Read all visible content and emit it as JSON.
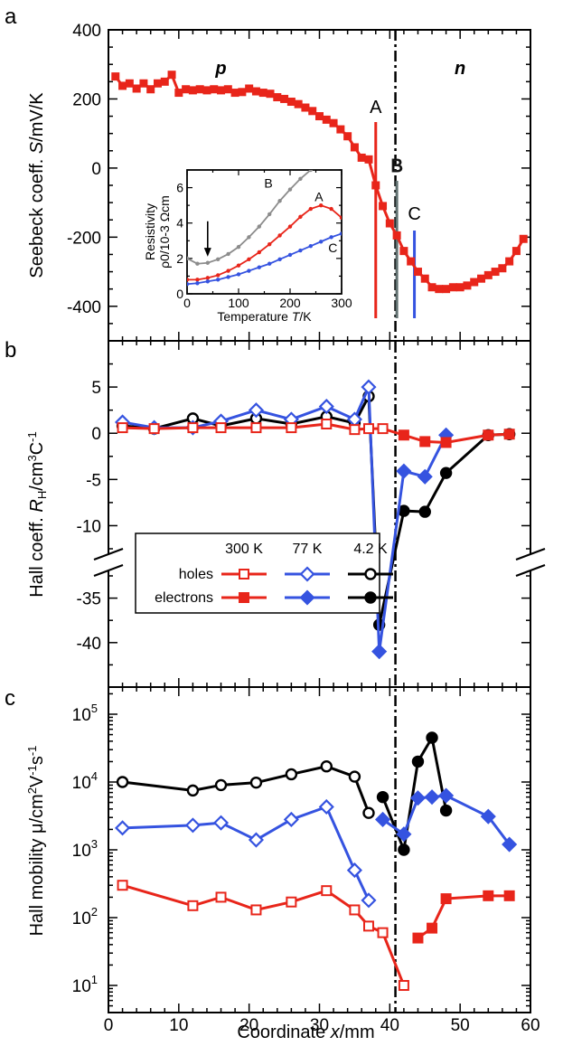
{
  "chart_data": [
    {
      "panel": "a",
      "type": "line",
      "xlabel": "Coordinate x/mm",
      "ylabel_prefix": "Seebeck coeff. ",
      "ylabel_var": "S",
      "ylabel_unit": "/mV/K",
      "xlim": [
        0,
        60
      ],
      "ylim": [
        -500,
        400
      ],
      "yticks": [
        "400",
        "200",
        "0",
        "-200",
        "-400"
      ],
      "color": "#e8251a",
      "x": [
        1,
        2,
        3,
        4,
        5,
        6,
        7,
        8,
        9,
        10,
        11,
        12,
        13,
        14,
        15,
        16,
        17,
        18,
        19,
        20,
        21,
        22,
        23,
        24,
        25,
        26,
        27,
        28,
        29,
        30,
        31,
        32,
        33,
        34,
        35,
        36,
        37,
        38,
        39,
        40,
        41,
        42,
        43,
        44,
        45,
        46,
        47,
        48,
        49,
        50,
        51,
        52,
        53,
        54,
        55,
        56,
        57,
        58,
        59
      ],
      "y": [
        265,
        238,
        245,
        230,
        245,
        228,
        245,
        250,
        270,
        218,
        228,
        225,
        228,
        225,
        228,
        225,
        228,
        218,
        220,
        230,
        222,
        218,
        215,
        205,
        200,
        192,
        185,
        175,
        165,
        150,
        140,
        130,
        112,
        92,
        60,
        30,
        25,
        -50,
        -110,
        -160,
        -195,
        -240,
        -270,
        -300,
        -320,
        -345,
        -350,
        -350,
        -345,
        -345,
        -340,
        -330,
        -320,
        -310,
        -300,
        -290,
        -270,
        -240,
        -205
      ],
      "region_labels": [
        "p",
        "n"
      ],
      "markers": [
        {
          "label": "A",
          "x": 38,
          "color": "#e8251a"
        },
        {
          "label": "B",
          "x": 41,
          "color": "#607070"
        },
        {
          "label": "C",
          "x": 43.5,
          "color": "#3553e0"
        }
      ],
      "inset": {
        "type": "line",
        "xlabel_prefix": "Temperature ",
        "xlabel_var": "T",
        "xlabel_unit": "/K",
        "ylabel_top": "Resistivity",
        "ylabel_bottom": "ρ0/10-3 Ωcm",
        "xlim": [
          0,
          300
        ],
        "ylim": [
          0,
          7
        ],
        "xticks": [
          "0",
          "100",
          "200",
          "300"
        ],
        "yticks": [
          "0",
          "2",
          "4",
          "6"
        ],
        "series": [
          {
            "name": "B",
            "color": "#8c8c8c",
            "x": [
              0,
              20,
              40,
              60,
              80,
              100,
              120,
              140,
              160,
              180,
              200,
              220,
              240,
              250
            ],
            "y": [
              2.0,
              1.7,
              1.75,
              1.95,
              2.25,
              2.65,
              3.2,
              3.8,
              4.5,
              5.25,
              5.9,
              6.5,
              7.0,
              7.2
            ]
          },
          {
            "name": "A",
            "color": "#e8251a",
            "x": [
              0,
              20,
              40,
              60,
              80,
              100,
              120,
              140,
              160,
              180,
              200,
              220,
              240,
              260,
              280,
              300
            ],
            "y": [
              0.8,
              0.8,
              0.9,
              1.05,
              1.3,
              1.6,
              1.95,
              2.35,
              2.8,
              3.3,
              3.8,
              4.35,
              4.8,
              5.0,
              4.8,
              4.3
            ]
          },
          {
            "name": "C",
            "color": "#3553e0",
            "x": [
              0,
              20,
              40,
              60,
              80,
              100,
              120,
              140,
              160,
              180,
              200,
              220,
              240,
              260,
              280,
              300
            ],
            "y": [
              0.55,
              0.6,
              0.7,
              0.8,
              0.95,
              1.1,
              1.3,
              1.5,
              1.7,
              1.95,
              2.2,
              2.45,
              2.7,
              2.95,
              3.2,
              3.4
            ]
          }
        ]
      }
    },
    {
      "panel": "b",
      "type": "line",
      "ylabel_prefix": "Hall coeff. ",
      "ylabel_var": "R",
      "ylabel_sub": "H",
      "ylabel_unit": "/cm",
      "ylabel_unit2": "C",
      "xlim": [
        0,
        60
      ],
      "ylim_upper": [
        -12.5,
        10
      ],
      "ylim_lower": [
        -45,
        -32.5
      ],
      "yticks": [
        "5",
        "0",
        "-5",
        "-10",
        "-35",
        "-40"
      ],
      "legend": {
        "columns": [
          "300 K",
          "77 K",
          "4.2 K"
        ],
        "rows": [
          "holes",
          "electrons"
        ]
      },
      "series": [
        {
          "name": "300 K",
          "color": "#e8251a",
          "marker": "square",
          "x": [
            2,
            6.5,
            12,
            16,
            21,
            26,
            31,
            35,
            37,
            39,
            42,
            45,
            48,
            54,
            57
          ],
          "y": [
            0.6,
            0.5,
            0.6,
            0.6,
            0.6,
            0.6,
            1.0,
            0.4,
            0.5,
            0.5,
            -0.2,
            -0.9,
            -1.0,
            -0.2,
            -0.1
          ],
          "filled": [
            false,
            false,
            false,
            false,
            false,
            false,
            false,
            false,
            false,
            false,
            true,
            true,
            true,
            true,
            true
          ]
        },
        {
          "name": "77 K",
          "color": "#3553e0",
          "marker": "diamond",
          "x": [
            2,
            6.5,
            12,
            16,
            21,
            26,
            31,
            35,
            37,
            38.5,
            42,
            45,
            48
          ],
          "y": [
            1.2,
            0.6,
            0.6,
            1.3,
            2.5,
            1.5,
            2.9,
            1.5,
            5.0,
            -41,
            -4.1,
            -4.7,
            -0.2
          ],
          "filled": [
            false,
            false,
            false,
            false,
            false,
            false,
            false,
            false,
            false,
            true,
            true,
            true,
            true
          ]
        },
        {
          "name": "4.2 K",
          "color": "#000000",
          "marker": "circle",
          "x": [
            2,
            6.5,
            12,
            16,
            21,
            26,
            31,
            35,
            37,
            38.5,
            42,
            45,
            48,
            54,
            57
          ],
          "y": [
            0.8,
            0.5,
            1.6,
            0.8,
            1.6,
            1.0,
            1.8,
            1.1,
            4.0,
            -38,
            -8.4,
            -8.5,
            -4.3,
            -0.2,
            -0.1
          ],
          "filled": [
            false,
            false,
            false,
            false,
            false,
            false,
            false,
            false,
            false,
            true,
            true,
            true,
            true,
            true,
            true
          ]
        }
      ]
    },
    {
      "panel": "c",
      "type": "line",
      "yscale": "log",
      "xlabel_prefix": "Coordinate ",
      "xlabel_var": "x",
      "xlabel_unit": "/mm",
      "ylabel_prefix": "Hall mobility ",
      "ylabel_var": "μ",
      "ylabel_unit": "/cm",
      "ylabel_unit2": "V",
      "ylabel_unit3": "s",
      "xlim": [
        0,
        60
      ],
      "ylim_log10": [
        0.6,
        5.4
      ],
      "yticks_base": "10",
      "yticks_exp": [
        "1",
        "2",
        "3",
        "4",
        "5"
      ],
      "xticks": [
        "0",
        "10",
        "20",
        "30",
        "40",
        "50",
        "60"
      ],
      "series": [
        {
          "name": "300 K",
          "color": "#e8251a",
          "marker": "square",
          "segments": [
            {
              "x": [
                2,
                12,
                16,
                21,
                26,
                31,
                35,
                37,
                39,
                42
              ],
              "y": [
                300,
                150,
                200,
                130,
                170,
                250,
                130,
                75,
                60,
                10
              ]
            },
            {
              "x": [
                44,
                46,
                48,
                54,
                57
              ],
              "y": [
                50,
                70,
                190,
                210,
                210
              ]
            }
          ],
          "filled_from": 44
        },
        {
          "name": "77 K",
          "color": "#3553e0",
          "marker": "diamond",
          "segments": [
            {
              "x": [
                2,
                12,
                16,
                21,
                26,
                31,
                35,
                37
              ],
              "y": [
                2100,
                2300,
                2500,
                1400,
                2800,
                4300,
                500,
                180
              ]
            },
            {
              "x": [
                39,
                42,
                44,
                46,
                48,
                54,
                57
              ],
              "y": [
                2800,
                1700,
                5800,
                6000,
                6300,
                3100,
                1200
              ]
            }
          ],
          "filled_from": 39
        },
        {
          "name": "4.2 K",
          "color": "#000000",
          "marker": "circle",
          "segments": [
            {
              "x": [
                2,
                12,
                16,
                21,
                26,
                31,
                35,
                37
              ],
              "y": [
                10000,
                7500,
                9000,
                9800,
                13000,
                17000,
                12000,
                3500
              ]
            },
            {
              "x": [
                39,
                42,
                44,
                46,
                48
              ],
              "y": [
                6000,
                1000,
                20000,
                45000,
                3800
              ]
            }
          ],
          "filled_from": 39
        }
      ]
    }
  ]
}
